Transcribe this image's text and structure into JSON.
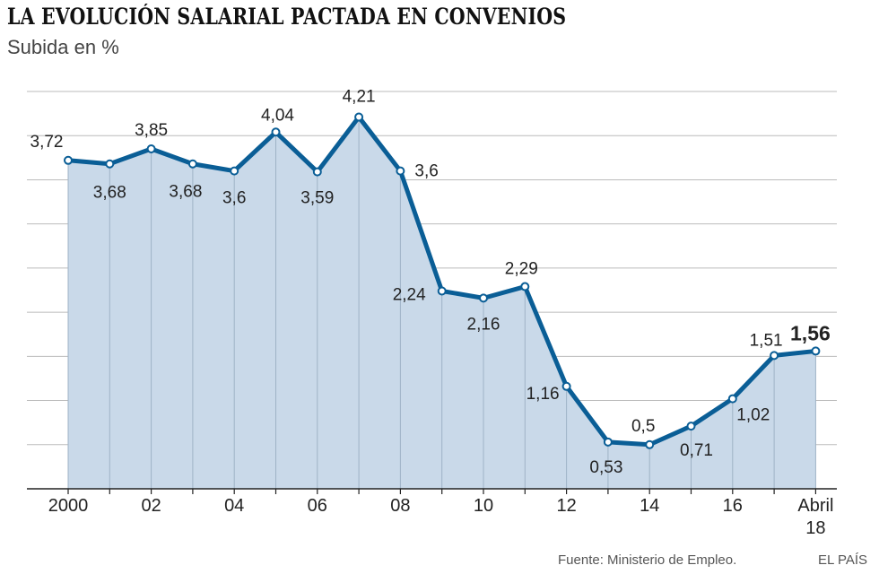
{
  "chart_data": {
    "type": "line",
    "title": "LA EVOLUCIÓN SALARIAL PACTADA EN CONVENIOS",
    "subtitle": "Subida en %",
    "x": [
      "2000",
      "2001",
      "2002",
      "2003",
      "2004",
      "2005",
      "2006",
      "2007",
      "2008",
      "2009",
      "2010",
      "2011",
      "2012",
      "2013",
      "2014",
      "2015",
      "2016",
      "2017",
      "Abril 2018"
    ],
    "values": [
      3.72,
      3.68,
      3.85,
      3.68,
      3.6,
      4.04,
      3.59,
      4.21,
      3.6,
      2.24,
      2.16,
      2.29,
      1.16,
      0.53,
      0.5,
      0.71,
      1.02,
      1.51,
      1.56
    ],
    "value_labels": [
      "3,72",
      "3,68",
      "3,85",
      "3,68",
      "3,6",
      "4,04",
      "3,59",
      "4,21",
      "3,6",
      "2,24",
      "2,16",
      "2,29",
      "1,16",
      "0,53",
      "0,5",
      "0,71",
      "1,02",
      "1,51",
      "1,56"
    ],
    "x_tick_labels": [
      "2000",
      "02",
      "04",
      "06",
      "08",
      "10",
      "12",
      "14",
      "16",
      "Abril"
    ],
    "x_tick_label_extra": "18",
    "ylim": [
      0.0,
      4.5
    ],
    "grid": true,
    "colors": {
      "line": "#0a5e96",
      "area": "#c9d9e9",
      "grid": "#bbbbbb",
      "point_fill": "#ffffff"
    }
  },
  "footer": {
    "source": "Fuente: Ministerio de Empleo.",
    "brand": "EL PAÍS"
  }
}
